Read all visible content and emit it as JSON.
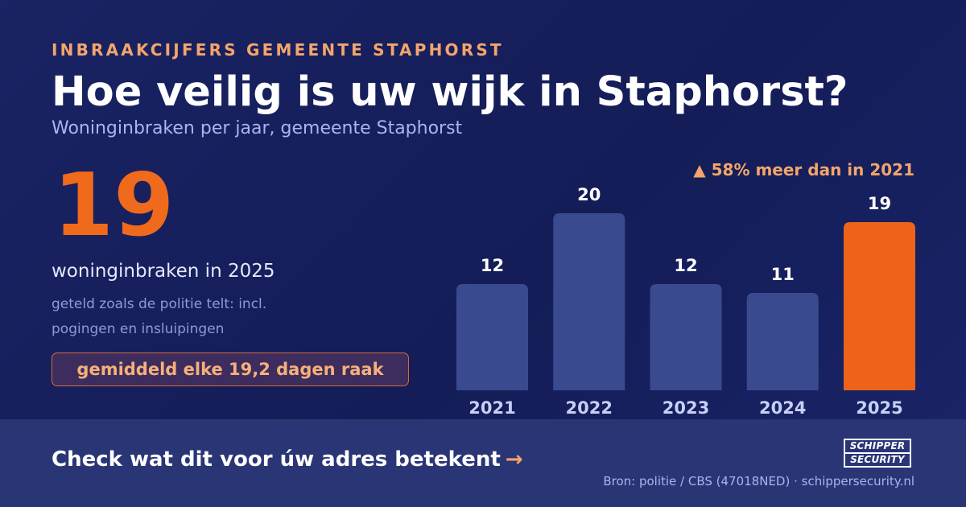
{
  "header": {
    "eyebrow": "INBRAAKCIJFERS GEMEENTE STAPHORST",
    "title": "Hoe veilig is uw wijk in Staphorst?",
    "subtitle": "Woninginbraken per jaar, gemeente Staphorst"
  },
  "highlight": {
    "value": "19",
    "caption": "woninginbraken in 2025",
    "note": "geteld zoals de politie telt: incl. pogingen en insluipingen",
    "pill": "gemiddeld elke 19,2 dagen raak"
  },
  "change_label": "▲ 58% meer dan in 2021",
  "chart_data": {
    "type": "bar",
    "categories": [
      "2021",
      "2022",
      "2023",
      "2024",
      "2025"
    ],
    "values": [
      12,
      20,
      12,
      11,
      19
    ],
    "highlight_index": 4,
    "ylim": [
      0,
      20
    ],
    "grid": false,
    "colors": {
      "bar": "#3a4a8f",
      "highlight": "#ec6319",
      "value_label": "#ffffff",
      "tick_label": "#c7cff5"
    }
  },
  "footer": {
    "cta": "Check wat dit voor úw adres betekent",
    "cta_arrow": "→",
    "logo_line1": "SCHIPPER",
    "logo_line2": "SECURITY",
    "source": "Bron: politie / CBS (47018NED) · schippersecurity.nl"
  },
  "colors": {
    "accent": "#f06a1c",
    "accent_light": "#f3a56b",
    "background": "#161f5c",
    "footer_bg": "#2a3576"
  }
}
